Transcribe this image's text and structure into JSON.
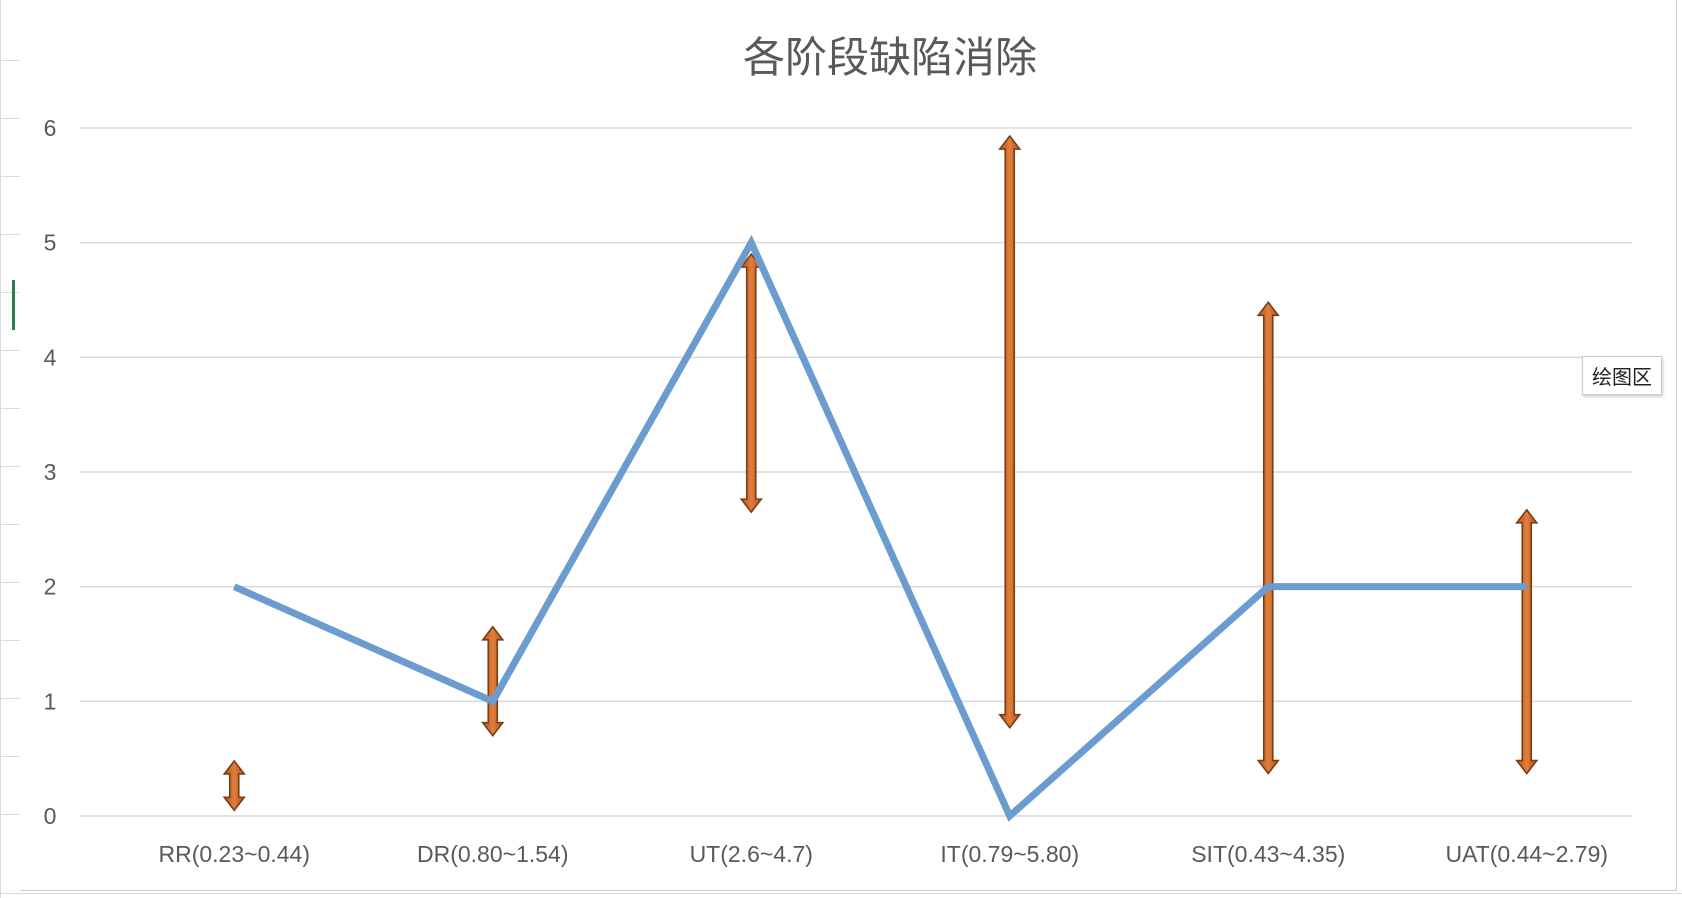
{
  "tooltip": {
    "text": "绘图区"
  },
  "colors": {
    "line": "#6a9ccf",
    "arrow_fill": "#d06b2c",
    "arrow_stroke": "#7a3d12",
    "gridline": "#d9d9d9",
    "text": "#595959"
  },
  "chart_data": {
    "type": "line",
    "title": "各阶段缺陷消除",
    "xlabel": "",
    "ylabel": "",
    "categories": [
      "RR(0.23~0.44)",
      "DR(0.80~1.54)",
      "UT(2.6~4.7)",
      "IT(0.79~5.80)",
      "SIT(0.43~4.35)",
      "UAT(0.44~2.79)"
    ],
    "ylim": [
      0,
      6
    ],
    "yticks": [
      0,
      1,
      2,
      3,
      4,
      5,
      6
    ],
    "grid": true,
    "legend": "none",
    "series": [
      {
        "values": [
          2,
          1,
          5,
          0,
          2,
          2
        ]
      }
    ],
    "range_arrows": [
      {
        "category": "RR(0.23~0.44)",
        "low": 0.05,
        "high": 0.48
      },
      {
        "category": "DR(0.80~1.54)",
        "low": 0.7,
        "high": 1.65
      },
      {
        "category": "UT(2.6~4.7)",
        "low": 2.65,
        "high": 4.9
      },
      {
        "category": "IT(0.79~5.80)",
        "low": 0.77,
        "high": 5.93
      },
      {
        "category": "SIT(0.43~4.35)",
        "low": 0.37,
        "high": 4.48
      },
      {
        "category": "UAT(0.44~2.79)",
        "low": 0.37,
        "high": 2.67
      }
    ]
  }
}
